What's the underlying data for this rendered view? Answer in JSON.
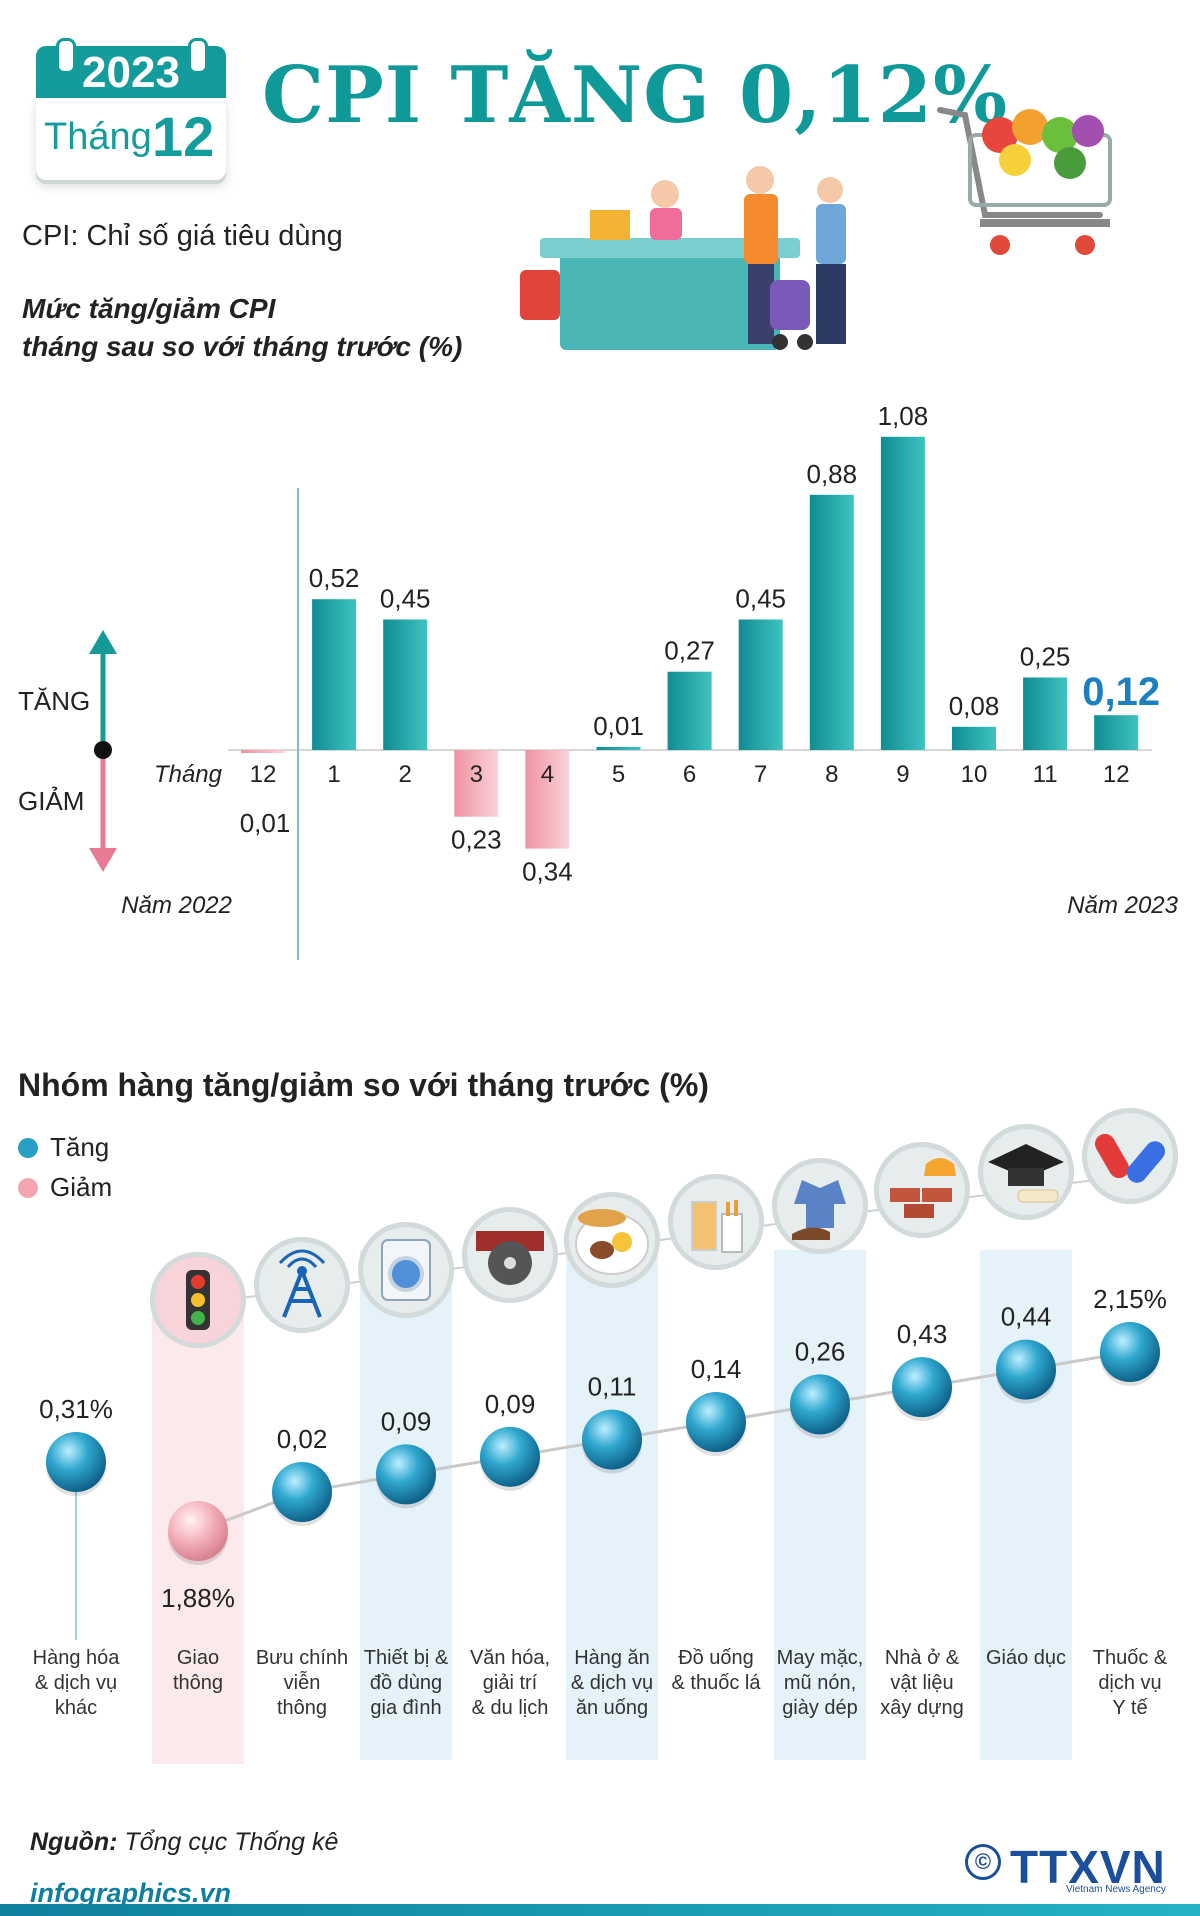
{
  "calendar": {
    "year": "2023",
    "month_word": "Tháng",
    "month_num": "12"
  },
  "headline": "CPI TĂNG 0,12%",
  "subtitle": "CPI: Chỉ số giá tiêu dùng",
  "chart_subtitle_line1": "Mức tăng/giảm CPI",
  "chart_subtitle_line2": "tháng sau so với tháng trước (%)",
  "indicator": {
    "up_label": "TĂNG",
    "down_label": "GIẢM"
  },
  "chart_data": [
    {
      "type": "bar",
      "title": "Mức tăng/giảm CPI tháng sau so với tháng trước (%)",
      "xlabel": "Tháng",
      "categories": [
        "12",
        "1",
        "2",
        "3",
        "4",
        "5",
        "6",
        "7",
        "8",
        "9",
        "10",
        "11",
        "12"
      ],
      "values": [
        -0.01,
        0.52,
        0.45,
        -0.23,
        -0.34,
        0.01,
        0.27,
        0.45,
        0.88,
        1.08,
        0.08,
        0.25,
        0.12
      ],
      "value_labels": [
        "0,01",
        "0,52",
        "0,45",
        "0,23",
        "0,34",
        "0,01",
        "0,27",
        "0,45",
        "0,88",
        "1,08",
        "0,08",
        "0,25",
        "0,12"
      ],
      "year_labels": [
        "Năm 2022",
        "Năm 2023"
      ],
      "ylim": [
        -0.4,
        1.1
      ],
      "colors": {
        "increase": "#1aa3a8",
        "decrease": "#f2a7b0",
        "highlight_label": "#1b7fc2"
      }
    },
    {
      "type": "scatter",
      "title": "Nhóm hàng tăng/giảm so với tháng trước (%)",
      "legend": [
        {
          "name": "Tăng",
          "color": "#2a9fc4"
        },
        {
          "name": "Giảm",
          "color": "#f2a7b0"
        }
      ],
      "categories": [
        "Hàng hóa & dịch vụ khác",
        "Giao thông",
        "Bưu chính viễn thông",
        "Thiết bị & đồ dùng gia đình",
        "Văn hóa, giải trí & du lịch",
        "Hàng ăn & dịch vụ ăn uống",
        "Đồ uống & thuốc lá",
        "May mặc, mũ nón, giày dép",
        "Nhà ở & vật liệu xây dựng",
        "Giáo dục",
        "Thuốc & dịch vụ Y tế"
      ],
      "category_lines": [
        [
          "Hàng hóa",
          "& dịch vụ",
          "khác"
        ],
        [
          "Giao",
          "thông"
        ],
        [
          "Bưu chính",
          "viễn",
          "thông"
        ],
        [
          "Thiết bị &",
          "đồ dùng",
          "gia đình"
        ],
        [
          "Văn hóa,",
          "giải trí",
          "& du lịch"
        ],
        [
          "Hàng ăn",
          "& dịch vụ",
          "ăn uống"
        ],
        [
          "Đồ uống",
          "& thuốc lá"
        ],
        [
          "May mặc,",
          "mũ nón,",
          "giày dép"
        ],
        [
          "Nhà ở &",
          "vật liệu",
          "xây dựng"
        ],
        [
          "Giáo dục"
        ],
        [
          "Thuốc &",
          "dịch vụ",
          "Y tế"
        ]
      ],
      "values": [
        0.31,
        -1.88,
        0.02,
        0.09,
        0.09,
        0.11,
        0.14,
        0.26,
        0.43,
        0.44,
        2.15
      ],
      "value_labels": [
        "0,31%",
        "1,88%",
        "0,02",
        "0,09",
        "0,09",
        "0,11",
        "0,14",
        "0,26",
        "0,43",
        "0,44",
        "2,15%"
      ],
      "icons": [
        "traffic-light-icon",
        "antenna-icon",
        "washing-machine-icon",
        "film-reel-icon",
        "food-plate-icon",
        "drinks-icon",
        "clothing-icon",
        "bricks-icon",
        "graduation-cap-icon",
        "pills-icon"
      ]
    }
  ],
  "source_label": "Nguồn:",
  "source_text": "Tổng cục Thống kê",
  "site": "infographics.vn",
  "brand": "TTXVN",
  "brand_sub": "Vietnam News Agency",
  "copyright_symbol": "©"
}
